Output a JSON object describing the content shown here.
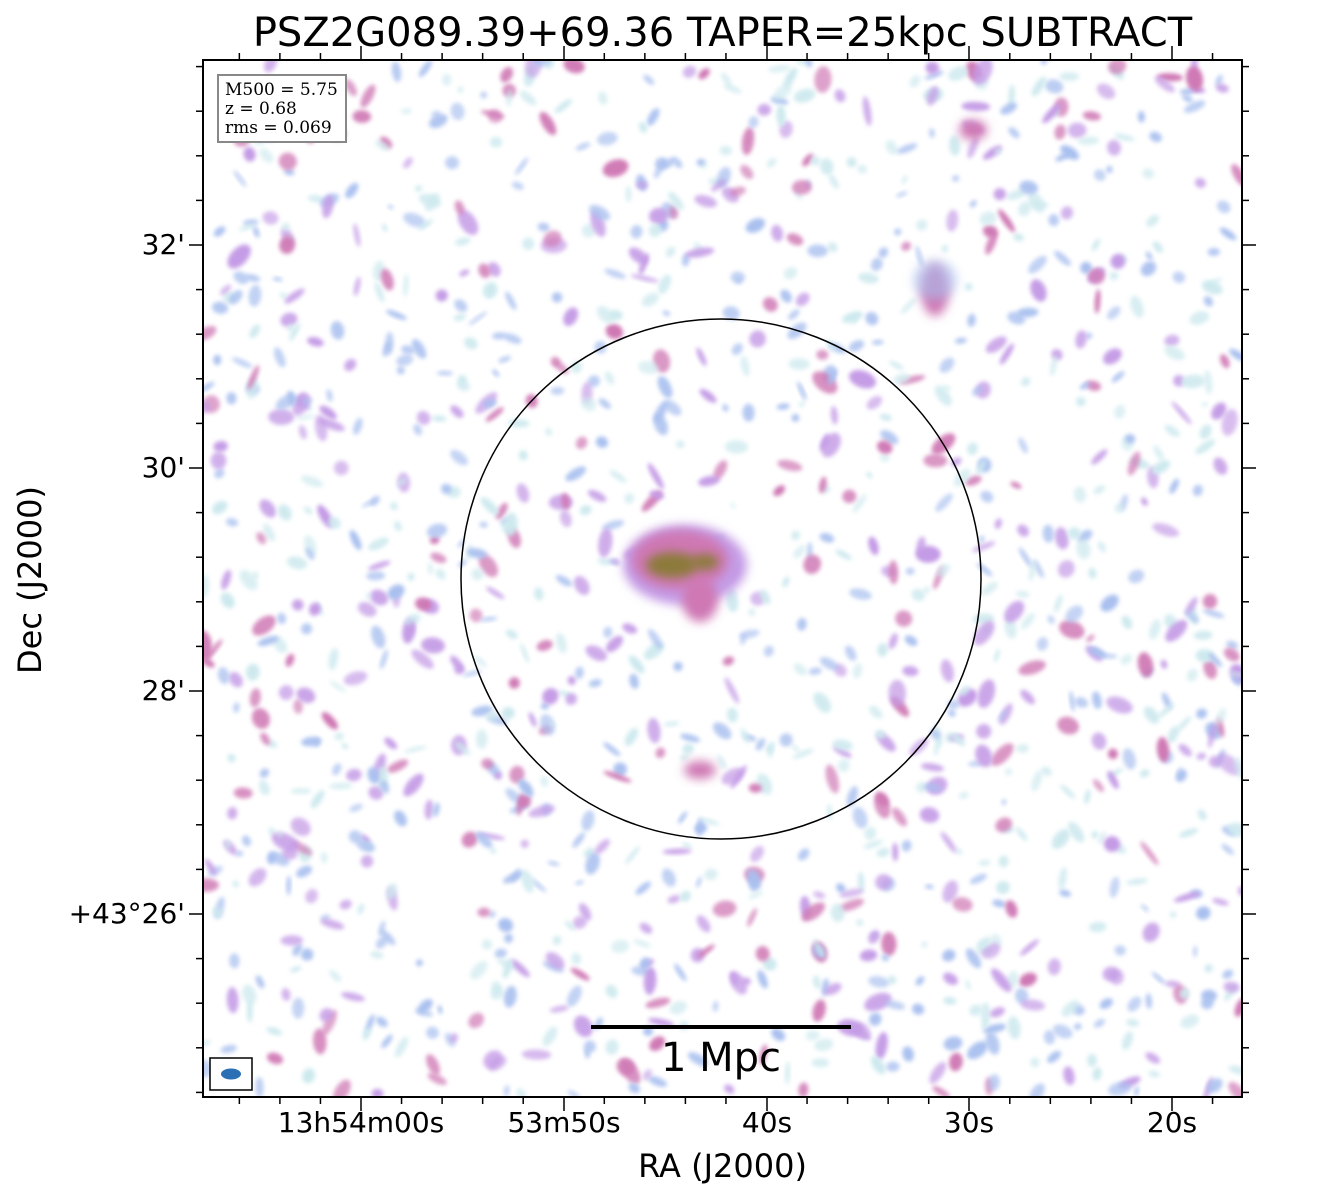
{
  "title": "PSZ2G089.39+69.36 TAPER=25kpc SUBTRACT",
  "axes": {
    "xlabel": "RA (J2000)",
    "ylabel": "Dec (J2000)",
    "x_ticks": [
      {
        "label": "13h54m00s"
      },
      {
        "label": "53m50s"
      },
      {
        "label": "40s"
      },
      {
        "label": "30s"
      },
      {
        "label": "20s"
      }
    ],
    "y_ticks": [
      {
        "label": "32'"
      },
      {
        "label": "30'"
      },
      {
        "label": "28'"
      },
      {
        "label": "+43°26'"
      }
    ]
  },
  "info": {
    "m500": "M500 = 5.75",
    "z": "z = 0.68",
    "rms": "rms = 0.069"
  },
  "scale_bar": {
    "label": "1 Mpc"
  },
  "colors": {
    "faint": "#cde9ee",
    "blue": "#a9c0ef",
    "violet": "#c49be6",
    "magenta": "#cf78b4",
    "core": "#8c7a3a",
    "beam": "#2b6fb5",
    "frame": "#000000"
  }
}
